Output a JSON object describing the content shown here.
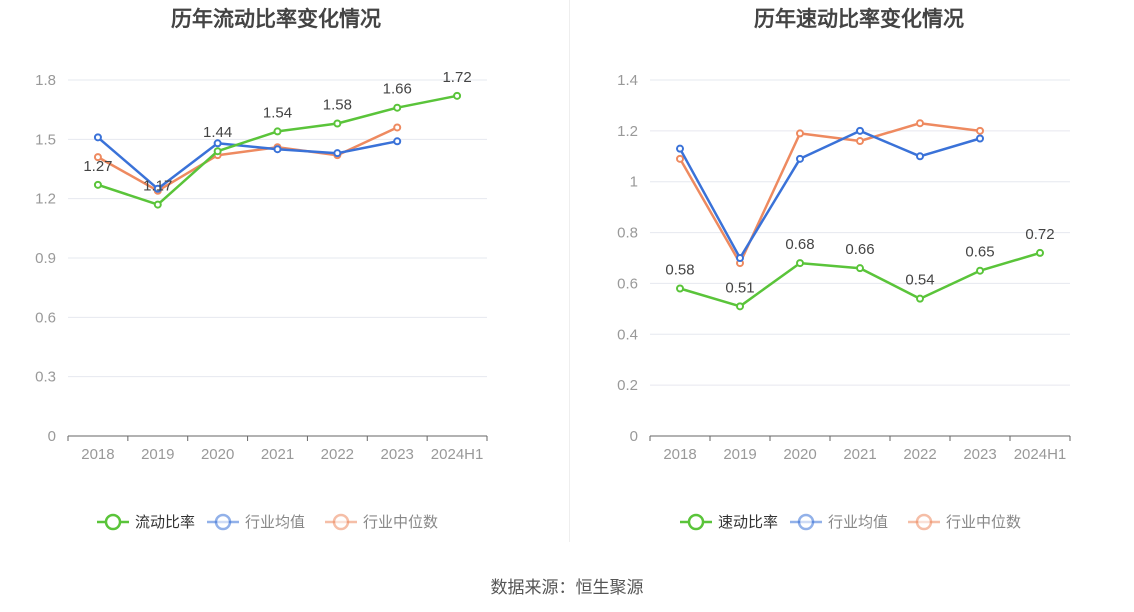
{
  "source_label": "数据来源：恒生聚源",
  "colors": {
    "primary": "#5ac43a",
    "industry_avg": "#3a72d8",
    "industry_median": "#ee8a60",
    "grid": "#e6e8ef",
    "axis": "#666666",
    "tick_text": "#999999",
    "title_text": "#444444",
    "label_text": "#444444"
  },
  "chart_data": [
    {
      "type": "line",
      "title": "历年流动比率变化情况",
      "categories": [
        "2018",
        "2019",
        "2020",
        "2021",
        "2022",
        "2023",
        "2024H1"
      ],
      "ylim": [
        0,
        1.8
      ],
      "yticks": [
        "0",
        "0.3",
        "0.6",
        "0.9",
        "1.2",
        "1.5",
        "1.8"
      ],
      "ytick_values": [
        0,
        0.3,
        0.6,
        0.9,
        1.2,
        1.5,
        1.8
      ],
      "series": [
        {
          "name": "流动比率",
          "color_key": "primary",
          "labeled": true,
          "values": [
            1.27,
            1.17,
            1.44,
            1.54,
            1.58,
            1.66,
            1.72
          ],
          "labels": [
            "1.27",
            "1.17",
            "1.44",
            "1.54",
            "1.58",
            "1.66",
            "1.72"
          ]
        },
        {
          "name": "行业均值",
          "color_key": "industry_avg",
          "labeled": false,
          "values": [
            1.51,
            1.25,
            1.48,
            1.45,
            1.43,
            1.49,
            null
          ]
        },
        {
          "name": "行业中位数",
          "color_key": "industry_median",
          "labeled": false,
          "values": [
            1.41,
            1.24,
            1.42,
            1.46,
            1.42,
            1.56,
            null
          ]
        }
      ],
      "legend": [
        "流动比率",
        "行业均值",
        "行业中位数"
      ],
      "legend_position": "bottom"
    },
    {
      "type": "line",
      "title": "历年速动比率变化情况",
      "categories": [
        "2018",
        "2019",
        "2020",
        "2021",
        "2022",
        "2023",
        "2024H1"
      ],
      "ylim": [
        0,
        1.4
      ],
      "yticks": [
        "0",
        "0.2",
        "0.4",
        "0.6",
        "0.8",
        "1",
        "1.2",
        "1.4"
      ],
      "ytick_values": [
        0,
        0.2,
        0.4,
        0.6,
        0.8,
        1.0,
        1.2,
        1.4
      ],
      "series": [
        {
          "name": "速动比率",
          "color_key": "primary",
          "labeled": true,
          "values": [
            0.58,
            0.51,
            0.68,
            0.66,
            0.54,
            0.65,
            0.72
          ],
          "labels": [
            "0.58",
            "0.51",
            "0.68",
            "0.66",
            "0.54",
            "0.65",
            "0.72"
          ]
        },
        {
          "name": "行业均值",
          "color_key": "industry_avg",
          "labeled": false,
          "values": [
            1.13,
            0.7,
            1.09,
            1.2,
            1.1,
            1.17,
            null
          ]
        },
        {
          "name": "行业中位数",
          "color_key": "industry_median",
          "labeled": false,
          "values": [
            1.09,
            0.68,
            1.19,
            1.16,
            1.23,
            1.2,
            null
          ]
        }
      ],
      "legend": [
        "速动比率",
        "行业均值",
        "行业中位数"
      ],
      "legend_position": "bottom"
    }
  ]
}
